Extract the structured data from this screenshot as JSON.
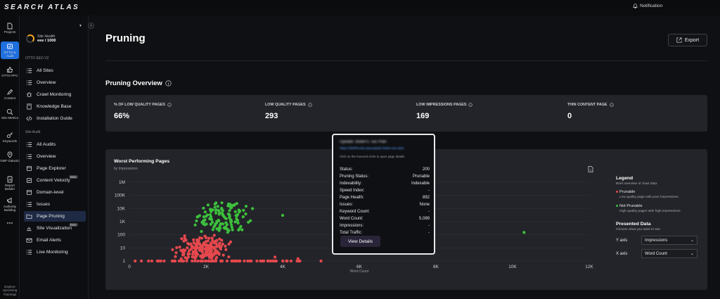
{
  "brand": "SEARCH ATLAS",
  "notification": "Notification",
  "rail": [
    {
      "label": "Projects",
      "icon": "file-icon"
    },
    {
      "label": "OTTO & Audit",
      "icon": "otto-icon",
      "active": true
    },
    {
      "label": "OTTO PPC",
      "icon": "thumb-icon"
    },
    {
      "label": "Content",
      "icon": "pen-icon"
    },
    {
      "label": "Site Metrics",
      "icon": "magnifier-chart-icon"
    },
    {
      "label": "Keywords",
      "icon": "key-icon"
    },
    {
      "label": "GBP Galactic",
      "icon": "location-pin-icon"
    },
    {
      "label": "Report Builder",
      "icon": "report-icon"
    },
    {
      "label": "Authority Building",
      "icon": "megaphone-icon"
    },
    {
      "label": "•••",
      "icon": "more-icon"
    }
  ],
  "rail_bottom": "Explore Upcoming Trainings",
  "site_health": {
    "label": "Site Health",
    "value": "eee / 1000"
  },
  "sidebar": {
    "section1": "OTTO SEO V2",
    "section2": "Site Audit",
    "items1": [
      {
        "label": "All Sites",
        "icon": "list-icon"
      },
      {
        "label": "Overview",
        "icon": "list-icon"
      },
      {
        "label": "Crawl Monitoring",
        "icon": "bug-icon"
      },
      {
        "label": "Knowledge Base",
        "icon": "book-icon"
      },
      {
        "label": "Installation Guide",
        "icon": "code-icon"
      }
    ],
    "items2": [
      {
        "label": "All Audits",
        "icon": "list-icon"
      },
      {
        "label": "Overview",
        "icon": "list-icon"
      },
      {
        "label": "Page Explorer",
        "icon": "page-icon"
      },
      {
        "label": "Content Velocity",
        "icon": "velocity-icon",
        "badge": "Beta"
      },
      {
        "label": "Domain-level",
        "icon": "page-icon"
      },
      {
        "label": "Issues",
        "icon": "list-icon"
      },
      {
        "label": "Page Pruning",
        "icon": "folder-icon",
        "active": true
      },
      {
        "label": "Site Visualization",
        "icon": "chart-icon",
        "badge": "Beta"
      },
      {
        "label": "Email Alerts",
        "icon": "mail-icon"
      },
      {
        "label": "Live Monitoring",
        "icon": "list-icon"
      }
    ]
  },
  "page_title": "Pruning",
  "export_label": "Export",
  "overview_title": "Pruning Overview",
  "stats": [
    {
      "label": "% OF LOW QUALITY PAGES",
      "value": "66%"
    },
    {
      "label": "LOW QUALITY PAGES",
      "value": "293"
    },
    {
      "label": "LOW IMPRESSIONS PAGES",
      "value": "169"
    },
    {
      "label": "THIN CONTENT PAGE",
      "value": "0"
    }
  ],
  "chart_card": {
    "title": "Worst Performing Pages",
    "subtitle": "by Impressions"
  },
  "legend": {
    "title": "Legend",
    "subtitle": "Brief overview of chart data",
    "items": [
      {
        "name": "Prunable",
        "desc": "Low quality page with poor impressions",
        "color": "#e5484d"
      },
      {
        "name": "Not Prunable",
        "desc": "High quality pages with high impressions",
        "color": "#3cc03c"
      }
    ],
    "presented_title": "Presented Data",
    "presented_sub": "Choose what you want to see",
    "y_axis_label": "Y axis",
    "y_axis_value": "Impressions",
    "x_axis_label": "X axis",
    "x_axis_value": "Word Count"
  },
  "tooltip": {
    "title": "Update: Biden's Tax Plan",
    "link": "https://delifrenda.spacaptala biden-tax-plan",
    "hint": "Click on the hovered circle to open page details",
    "rows": [
      {
        "k": "Status:",
        "v": "200"
      },
      {
        "k": "Pruning Status:",
        "v": "Prunable"
      },
      {
        "k": "Indexability:",
        "v": "Indexable"
      },
      {
        "k": "Speed Index:",
        "v": "-"
      },
      {
        "k": "Page Health:",
        "v": "892"
      },
      {
        "k": "Issues:",
        "v": "None"
      },
      {
        "k": "Keyword Count:",
        "v": "-"
      },
      {
        "k": "Word Count:",
        "v": "5,089"
      },
      {
        "k": "Impressions:",
        "v": "-"
      },
      {
        "k": "Total Traffic:",
        "v": "-"
      }
    ],
    "button": "View Details"
  },
  "chart_data": {
    "type": "scatter",
    "xlabel": "Word Count",
    "ylabel": "",
    "xlim": [
      0,
      12000
    ],
    "x_ticks": [
      "0",
      "2K",
      "4K",
      "6K",
      "8K",
      "10K",
      "12K"
    ],
    "y_ticks": [
      "1",
      "10",
      "100",
      "1K",
      "10K",
      "100K",
      "1M"
    ],
    "yscale": "log",
    "ylim": [
      1,
      1000000
    ],
    "series": [
      {
        "name": "Prunable",
        "color": "#e5484d",
        "summary": "~290 pages, mostly 800-3000 words, impressions 1-300; several outliers along impressions=1 up to ~5000 words"
      },
      {
        "name": "Not Prunable",
        "color": "#3cc03c",
        "summary": "~120 pages, 1000-4000 words, impressions 100-50K; one outlier at ~10.3K words, ~150 impressions"
      }
    ]
  }
}
